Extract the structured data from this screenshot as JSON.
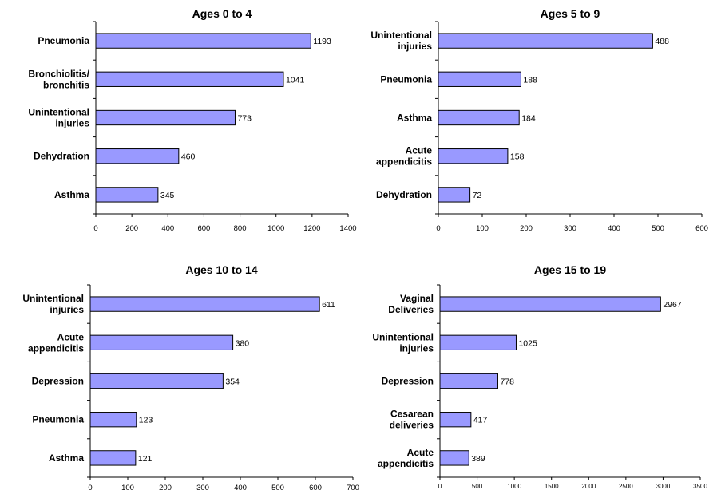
{
  "chart_data": [
    {
      "type": "bar",
      "orientation": "horizontal",
      "title": "Ages 0 to 4",
      "categories": [
        [
          "Pneumonia"
        ],
        [
          "Bronchiolitis/",
          "bronchitis"
        ],
        [
          "Unintentional",
          "injuries"
        ],
        [
          "Dehydration"
        ],
        [
          "Asthma"
        ]
      ],
      "values": [
        1193,
        1041,
        773,
        460,
        345
      ],
      "xlim": [
        0,
        1400
      ],
      "xticks": [
        0,
        200,
        400,
        600,
        800,
        1000,
        1200,
        1400
      ],
      "bar_color": "#9999ff",
      "grid": false
    },
    {
      "type": "bar",
      "orientation": "horizontal",
      "title": "Ages 5 to 9",
      "categories": [
        [
          "Unintentional",
          "injuries"
        ],
        [
          "Pneumonia"
        ],
        [
          "Asthma"
        ],
        [
          "Acute",
          "appendicitis"
        ],
        [
          "Dehydration"
        ]
      ],
      "values": [
        488,
        188,
        184,
        158,
        72
      ],
      "xlim": [
        0,
        600
      ],
      "xticks": [
        0,
        100,
        200,
        300,
        400,
        500,
        600
      ],
      "bar_color": "#9999ff",
      "grid": false
    },
    {
      "type": "bar",
      "orientation": "horizontal",
      "title": "Ages 10 to 14",
      "categories": [
        [
          "Unintentional",
          "injuries"
        ],
        [
          "Acute",
          "appendicitis"
        ],
        [
          "Depression"
        ],
        [
          "Pneumonia"
        ],
        [
          "Asthma"
        ]
      ],
      "values": [
        611,
        380,
        354,
        123,
        121
      ],
      "xlim": [
        0,
        700
      ],
      "xticks": [
        0,
        100,
        200,
        300,
        400,
        500,
        600,
        700
      ],
      "bar_color": "#9999ff",
      "grid": false
    },
    {
      "type": "bar",
      "orientation": "horizontal",
      "title": "Ages 15 to 19",
      "categories": [
        [
          "Vaginal",
          "Deliveries"
        ],
        [
          "Unintentional",
          "injuries"
        ],
        [
          "Depression"
        ],
        [
          "Cesarean",
          "deliveries"
        ],
        [
          "Acute",
          "appendicitis"
        ]
      ],
      "values": [
        2967,
        1025,
        778,
        417,
        389
      ],
      "xlim": [
        0,
        3500
      ],
      "xticks": [
        0,
        500,
        1000,
        1500,
        2000,
        2500,
        3000,
        3500
      ],
      "bar_color": "#9999ff",
      "grid": false
    }
  ]
}
